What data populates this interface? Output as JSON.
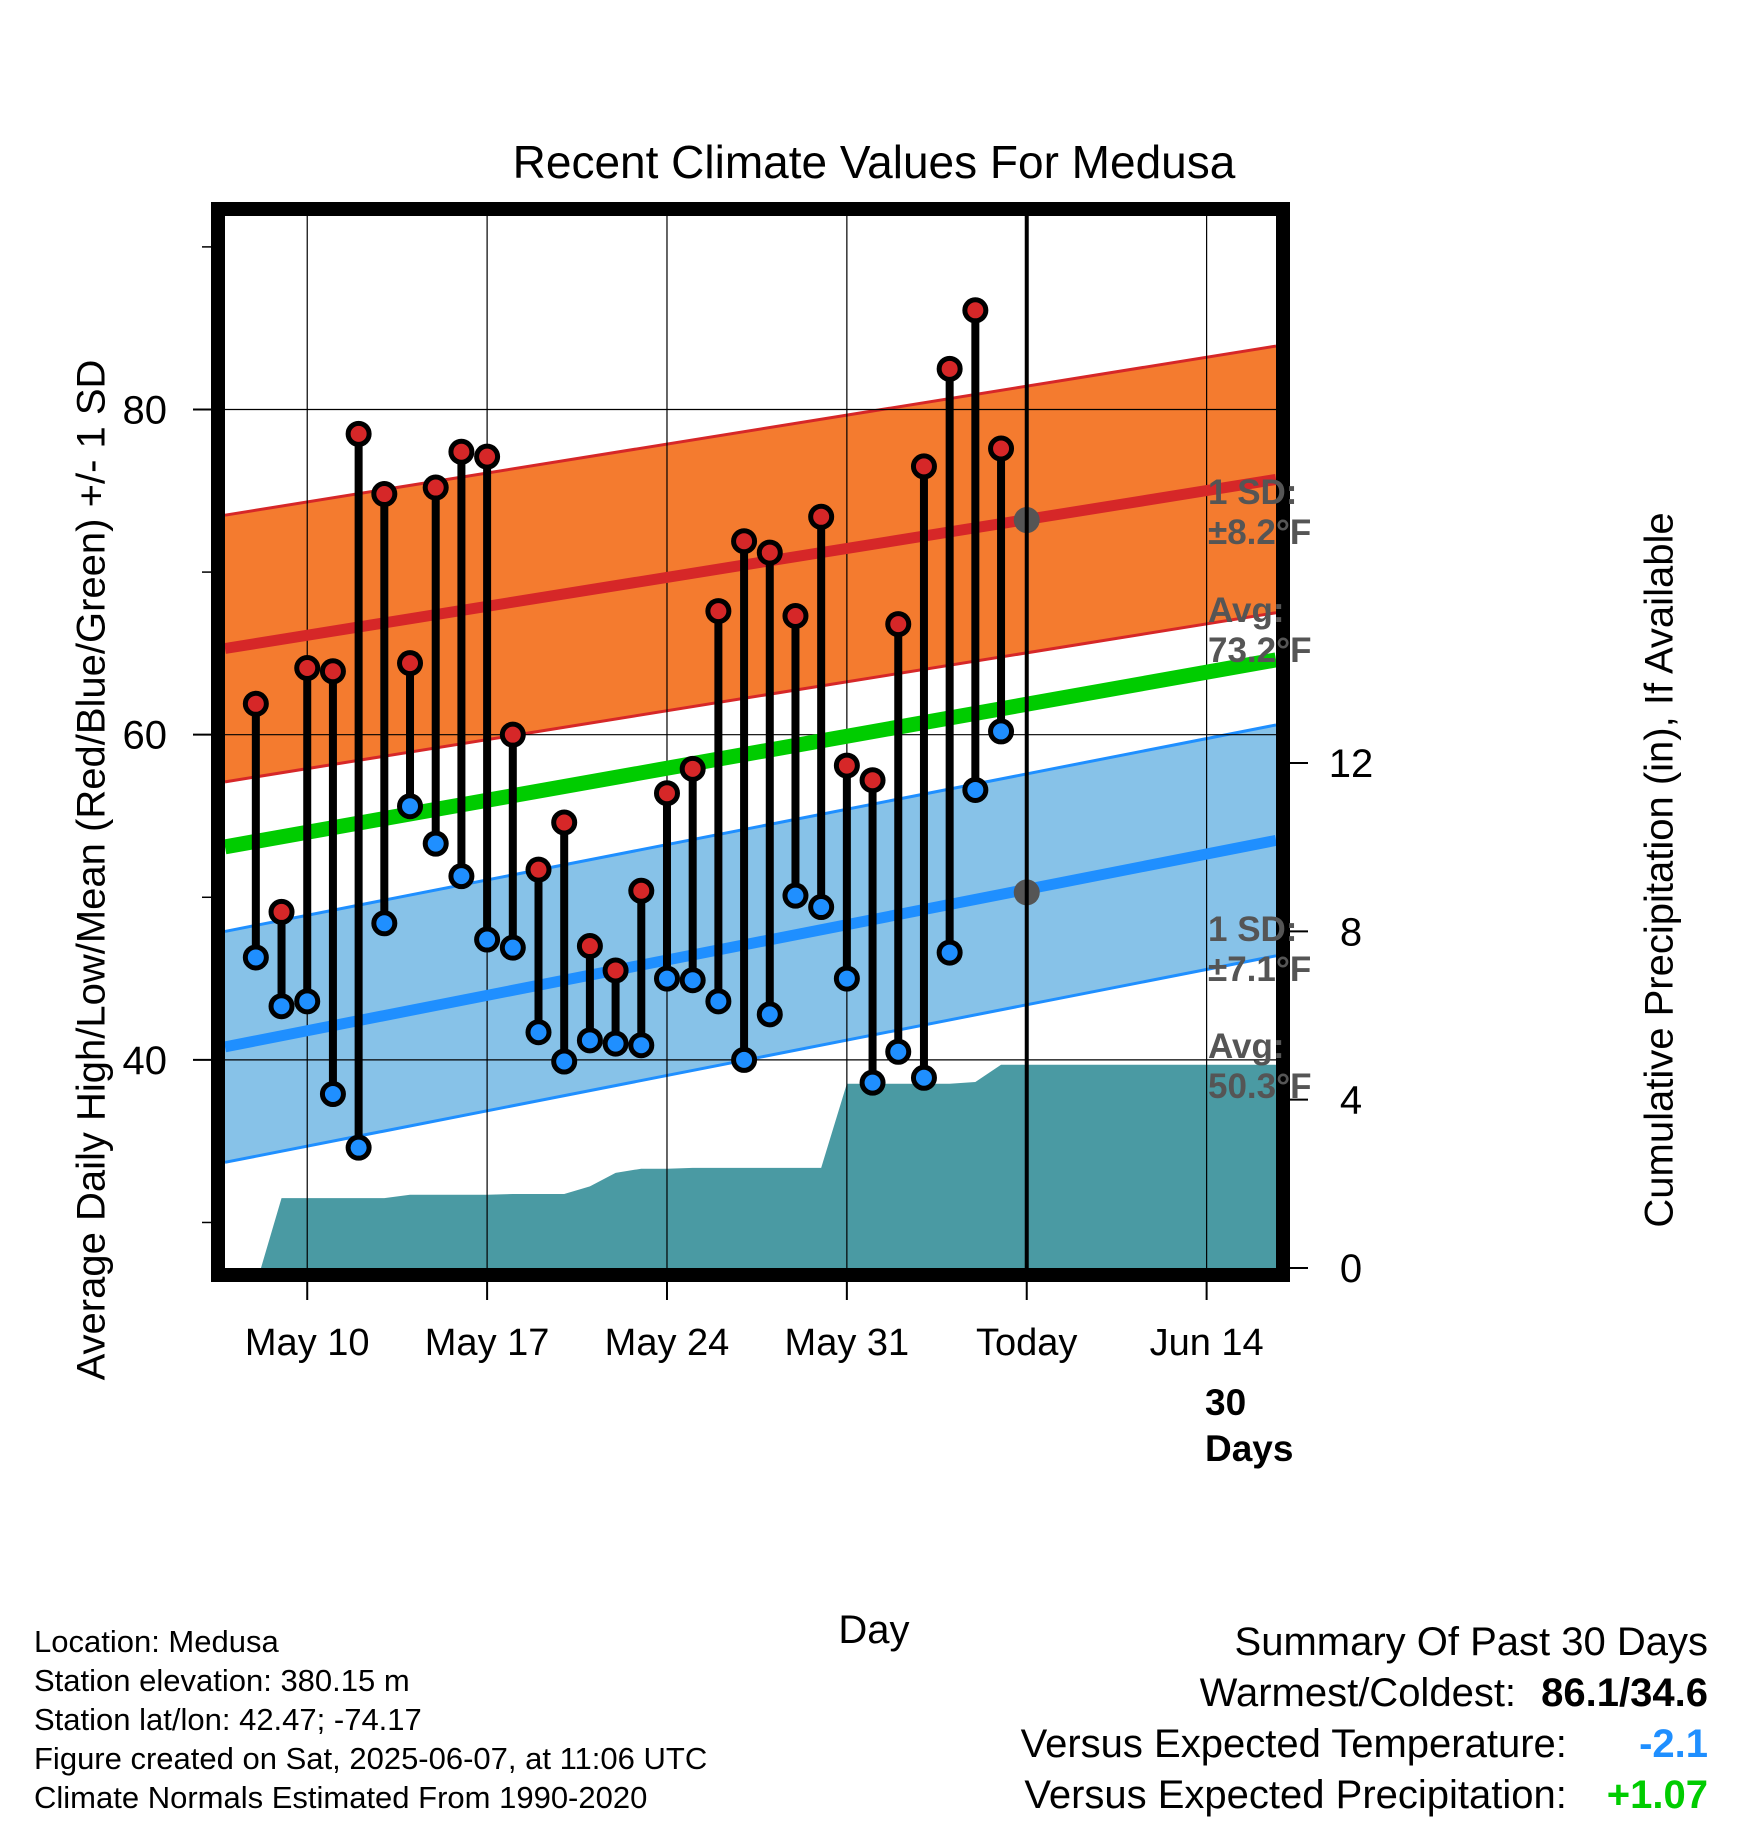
{
  "title": "Recent Climate Values For Medusa",
  "y_left_label": "Average Daily High/Low/Mean (Red/Blue/Green) +/- 1 SD",
  "y_right_label": "Cumulative Precipitation (in), If Available",
  "x_label": "Day",
  "annotations": {
    "high_sd_line1": "1 SD:",
    "high_sd_value": "±8.2",
    "high_avg_line1": "Avg:",
    "high_avg_value": "73.2",
    "low_sd_line1": "1 SD:",
    "low_sd_value": "±7.1",
    "low_avg_line1": "Avg:",
    "low_avg_value": "50.3",
    "unit": "°F",
    "days_line1": "30",
    "days_line2": "Days"
  },
  "info": {
    "location": "Location: Medusa",
    "elevation": "Station elevation: 380.15 m",
    "latlon": "Station lat/lon: 42.47; -74.17",
    "created": "Figure created on Sat, 2025-06-07, at 11:06 UTC",
    "normals": "Climate Normals Estimated From 1990-2020"
  },
  "summary": {
    "heading": "Summary Of Past 30 Days",
    "warmest_label": "Warmest/Coldest:",
    "warmest_value": "86.1/34.6",
    "temp_label": "Versus Expected Temperature:",
    "temp_value": "-2.1",
    "precip_label": "Versus Expected Precipitation:",
    "precip_value": "+1.07"
  },
  "colors": {
    "high": "#d62728",
    "low": "#1f8fff",
    "mean": "#00cc00",
    "high_band": "#f47b2f",
    "low_band": "#87c2e8",
    "precip": "#4a9aa3",
    "avg_marker": "#555555"
  },
  "chart_data": {
    "type": "line",
    "x_ticks": [
      {
        "day": 10,
        "label": "May 10"
      },
      {
        "day": 17,
        "label": "May 17"
      },
      {
        "day": 24,
        "label": "May 24"
      },
      {
        "day": 31,
        "label": "May 31"
      },
      {
        "day": 38,
        "label": "Today"
      },
      {
        "day": 45,
        "label": "Jun 14"
      }
    ],
    "x_range": [
      6.8,
      47.7
    ],
    "y_left_ticks": [
      40,
      60,
      80
    ],
    "y_left_range": [
      27.2,
      91.9
    ],
    "y_right_ticks": [
      0,
      4,
      8,
      12
    ],
    "y_right_range": [
      0,
      25
    ],
    "today_day": 38,
    "days": [
      8,
      9,
      10,
      11,
      12,
      13,
      14,
      15,
      16,
      17,
      18,
      19,
      20,
      21,
      22,
      23,
      24,
      25,
      26,
      27,
      28,
      29,
      30,
      31,
      32,
      33,
      34,
      35,
      36,
      37
    ],
    "highs": [
      61.9,
      49.1,
      64.1,
      63.9,
      78.5,
      74.8,
      64.4,
      75.2,
      77.4,
      77.1,
      60.0,
      51.7,
      54.6,
      47.0,
      45.5,
      50.4,
      56.4,
      57.9,
      67.6,
      71.9,
      71.2,
      67.3,
      73.4,
      58.1,
      57.2,
      66.8,
      76.5,
      82.5,
      86.1,
      77.6
    ],
    "lows": [
      46.3,
      43.3,
      43.6,
      37.9,
      34.6,
      48.4,
      55.6,
      53.3,
      51.3,
      47.4,
      46.9,
      41.7,
      39.9,
      41.2,
      41.0,
      40.9,
      45.0,
      44.9,
      43.6,
      40.0,
      42.8,
      50.1,
      49.4,
      45.0,
      38.6,
      40.5,
      38.9,
      46.6,
      56.6,
      60.2
    ],
    "normal_high_start": 65.3,
    "normal_high_end": 75.7,
    "normal_low_start": 40.8,
    "normal_low_end": 53.5,
    "normal_mean_start": 53.1,
    "normal_mean_end": 64.6,
    "high_sd": 8.2,
    "low_sd": 7.1,
    "avg_high_today": 73.2,
    "avg_low_today": 50.3,
    "precip_days": [
      7.6,
      8.2,
      9,
      10,
      11,
      12,
      13,
      14,
      15,
      16,
      17,
      18,
      19,
      20,
      21,
      22,
      23,
      24,
      25,
      26,
      27,
      28,
      29,
      30,
      31,
      32,
      33,
      34,
      35,
      36,
      37,
      38,
      47.7
    ],
    "precip_cum": [
      0,
      0,
      1.66,
      1.66,
      1.66,
      1.66,
      1.66,
      1.74,
      1.74,
      1.74,
      1.74,
      1.76,
      1.76,
      1.76,
      1.94,
      2.26,
      2.36,
      2.36,
      2.38,
      2.38,
      2.38,
      2.38,
      2.38,
      2.38,
      4.38,
      4.38,
      4.38,
      4.38,
      4.38,
      4.42,
      4.83,
      4.83,
      4.83
    ]
  }
}
